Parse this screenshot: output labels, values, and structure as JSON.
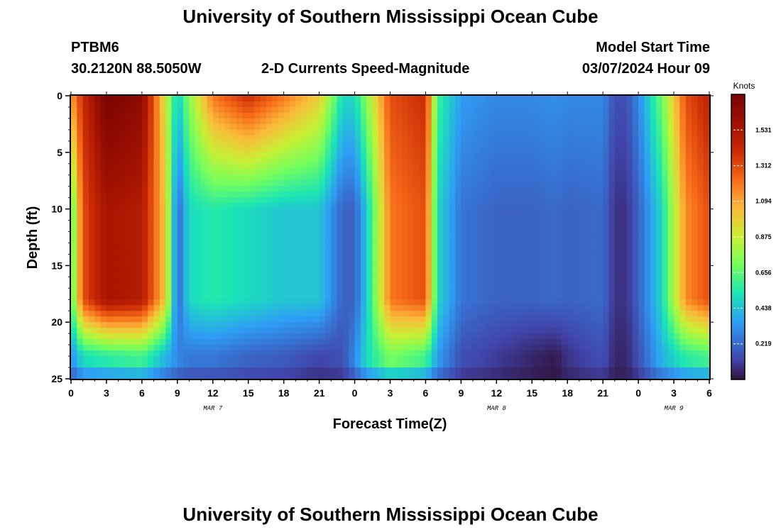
{
  "header": {
    "title": "University of Southern Mississippi Ocean Cube",
    "station": "PTBM6",
    "location": "30.2120N  88.5050W",
    "subtitle": "2-D Currents Speed-Magnitude",
    "model_label": "Model Start Time",
    "model_time": "03/07/2024 Hour 09"
  },
  "footer": {
    "title": "University of Southern Mississippi Ocean Cube"
  },
  "chart_data": {
    "type": "heatmap",
    "title": "2-D Currents Speed-Magnitude",
    "xlabel": "Forecast Time(Z)",
    "ylabel": "Depth (ft)",
    "x_range_hours": [
      0,
      54
    ],
    "y_range_ft": [
      0,
      25
    ],
    "y_inverted": true,
    "x_ticks": [
      {
        "t": 0,
        "label": "0"
      },
      {
        "t": 3,
        "label": "3"
      },
      {
        "t": 6,
        "label": "6"
      },
      {
        "t": 9,
        "label": "9"
      },
      {
        "t": 12,
        "label": "12"
      },
      {
        "t": 15,
        "label": "15"
      },
      {
        "t": 18,
        "label": "18"
      },
      {
        "t": 21,
        "label": "21"
      },
      {
        "t": 24,
        "label": "0"
      },
      {
        "t": 27,
        "label": "3"
      },
      {
        "t": 30,
        "label": "6"
      },
      {
        "t": 33,
        "label": "9"
      },
      {
        "t": 36,
        "label": "12"
      },
      {
        "t": 39,
        "label": "15"
      },
      {
        "t": 42,
        "label": "18"
      },
      {
        "t": 45,
        "label": "21"
      },
      {
        "t": 48,
        "label": "0"
      },
      {
        "t": 51,
        "label": "3"
      },
      {
        "t": 54,
        "label": "6"
      }
    ],
    "y_ticks": [
      0,
      5,
      10,
      15,
      20,
      25
    ],
    "day_labels": [
      {
        "t": 12,
        "label": "MAR 7"
      },
      {
        "t": 36,
        "label": "MAR 8"
      },
      {
        "t": 51,
        "label": "MAR 9"
      }
    ],
    "colorbar": {
      "label": "Knots",
      "min": 0.0,
      "max": 1.75,
      "ticks": [
        "0.219",
        "0.438",
        "0.656",
        "0.875",
        "1.094",
        "1.312",
        "1.531"
      ]
    },
    "speed_profile_knots": {
      "description": "Approximate current speed (knots) at sample times (h) for surface (0 ft), mid (10 ft), and bottom (22 ft) depths",
      "t": [
        0,
        1,
        3,
        6,
        8,
        9,
        10,
        12,
        15,
        18,
        21,
        23,
        24,
        25,
        27,
        30,
        31,
        33,
        36,
        39,
        41,
        42,
        45,
        46,
        47,
        48,
        50,
        52,
        54
      ],
      "surface": [
        1.1,
        1.4,
        1.75,
        1.65,
        0.9,
        0.45,
        0.75,
        1.2,
        1.4,
        1.2,
        1.0,
        0.5,
        0.5,
        0.75,
        1.3,
        1.4,
        0.6,
        0.35,
        0.3,
        0.3,
        0.32,
        0.3,
        0.3,
        0.15,
        0.15,
        0.3,
        0.7,
        1.3,
        1.45
      ],
      "mid": [
        0.6,
        1.3,
        1.55,
        1.5,
        1.0,
        0.2,
        0.5,
        0.55,
        0.5,
        0.45,
        0.45,
        0.2,
        0.2,
        0.45,
        1.2,
        1.3,
        0.5,
        0.25,
        0.2,
        0.2,
        0.22,
        0.2,
        0.22,
        0.08,
        0.08,
        0.2,
        0.5,
        1.15,
        1.3
      ],
      "bottom": [
        0.3,
        0.5,
        0.55,
        0.6,
        0.4,
        0.3,
        0.25,
        0.25,
        0.2,
        0.18,
        0.12,
        0.15,
        0.3,
        0.5,
        0.7,
        0.6,
        0.35,
        0.15,
        0.1,
        0.05,
        0.02,
        0.08,
        0.15,
        0.05,
        0.05,
        0.15,
        0.4,
        0.55,
        0.6
      ]
    }
  }
}
